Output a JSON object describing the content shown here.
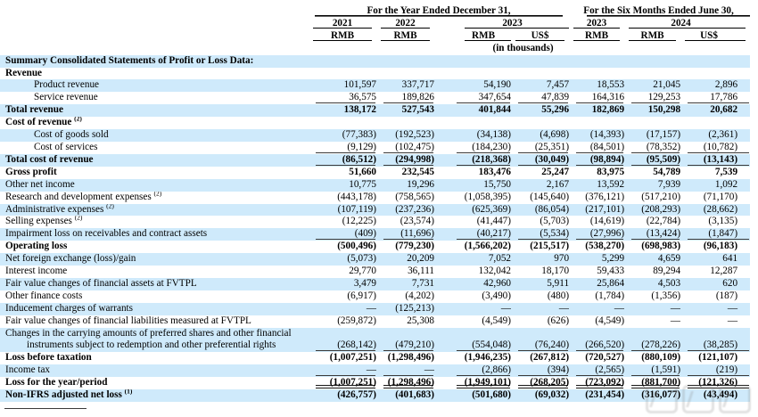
{
  "colors": {
    "stripe": "#cfeafb",
    "text": "#000000"
  },
  "header": {
    "group_year": "For the Year Ended December 31,",
    "group_six_months": "For the Six Months Ended June 30,",
    "years": [
      "2021",
      "2022",
      "2023",
      "2023",
      "2024"
    ],
    "currencies": [
      "RMB",
      "RMB",
      "RMB",
      "US$",
      "RMB",
      "RMB",
      "US$"
    ],
    "units_note": "(in thousands)"
  },
  "rows": [
    {
      "label": "Summary Consolidated Statements of Profit or Loss Data:",
      "bold": true,
      "values": [
        "",
        "",
        "",
        "",
        "",
        "",
        ""
      ]
    },
    {
      "label": "Revenue",
      "bold": true,
      "values": [
        "",
        "",
        "",
        "",
        "",
        "",
        ""
      ]
    },
    {
      "label": "Product revenue",
      "indent": true,
      "values": [
        "101,597",
        "337,717",
        "54,190",
        "7,457",
        "18,553",
        "21,045",
        "2,896"
      ]
    },
    {
      "label": "Service revenue",
      "indent": true,
      "underline": "u",
      "values": [
        "36,575",
        "189,826",
        "347,654",
        "47,839",
        "164,316",
        "129,253",
        "17,786"
      ]
    },
    {
      "label": "Total revenue",
      "bold": true,
      "values": [
        "138,172",
        "527,543",
        "401,844",
        "55,296",
        "182,869",
        "150,298",
        "20,682"
      ]
    },
    {
      "label": "Cost of revenue",
      "sup": "(2)",
      "bold": true,
      "values": [
        "",
        "",
        "",
        "",
        "",
        "",
        ""
      ]
    },
    {
      "label": "Cost of goods sold",
      "indent": true,
      "values": [
        "(77,383)",
        "(192,523)",
        "(34,138)",
        "(4,698)",
        "(14,393)",
        "(17,157)",
        "(2,361)"
      ]
    },
    {
      "label": "Cost of services",
      "indent": true,
      "underline": "u",
      "values": [
        "(9,129)",
        "(102,475)",
        "(184,230)",
        "(25,351)",
        "(84,501)",
        "(78,352)",
        "(10,782)"
      ]
    },
    {
      "label": "Total cost of revenue",
      "bold": true,
      "underline": "u",
      "values": [
        "(86,512)",
        "(294,998)",
        "(218,368)",
        "(30,049)",
        "(98,894)",
        "(95,509)",
        "(13,143)"
      ]
    },
    {
      "label": "Gross profit",
      "bold": true,
      "values": [
        "51,660",
        "232,545",
        "183,476",
        "25,247",
        "83,975",
        "54,789",
        "7,539"
      ]
    },
    {
      "label": "Other net income",
      "values": [
        "10,775",
        "19,296",
        "15,750",
        "2,167",
        "13,592",
        "7,939",
        "1,092"
      ]
    },
    {
      "label": "Research and development expenses",
      "sup": "(2)",
      "values": [
        "(443,178)",
        "(758,565)",
        "(1,058,395)",
        "(145,640)",
        "(376,121)",
        "(517,210)",
        "(71,170)"
      ]
    },
    {
      "label": "Administrative expenses",
      "sup": "(2)",
      "values": [
        "(107,119)",
        "(237,236)",
        "(625,369)",
        "(86,054)",
        "(217,101)",
        "(208,293)",
        "(28,662)"
      ]
    },
    {
      "label": "Selling expenses",
      "sup": "(2)",
      "values": [
        "(12,225)",
        "(23,574)",
        "(41,447)",
        "(5,703)",
        "(14,619)",
        "(22,784)",
        "(3,135)"
      ]
    },
    {
      "label": "Impairment loss on receivables and contract assets",
      "underline": "u",
      "values": [
        "(409)",
        "(11,696)",
        "(40,217)",
        "(5,534)",
        "(27,996)",
        "(13,424)",
        "(1,847)"
      ]
    },
    {
      "label": "Operating loss",
      "bold": true,
      "values": [
        "(500,496)",
        "(779,230)",
        "(1,566,202)",
        "(215,517)",
        "(538,270)",
        "(698,983)",
        "(96,183)"
      ]
    },
    {
      "label": "Net foreign exchange (loss)/gain",
      "values": [
        "(5,073)",
        "20,209",
        "7,052",
        "970",
        "5,299",
        "4,659",
        "641"
      ]
    },
    {
      "label": "Interest income",
      "values": [
        "29,770",
        "36,111",
        "132,042",
        "18,170",
        "59,433",
        "89,294",
        "12,287"
      ]
    },
    {
      "label": "Fair value changes of financial assets at FVTPL",
      "values": [
        "3,479",
        "7,731",
        "42,960",
        "5,911",
        "25,864",
        "4,503",
        "620"
      ]
    },
    {
      "label": "Other finance costs",
      "values": [
        "(6,917)",
        "(4,202)",
        "(3,490)",
        "(480)",
        "(1,784)",
        "(1,356)",
        "(187)"
      ]
    },
    {
      "label": "Inducement charges of warrants",
      "values": [
        "—",
        "(125,213)",
        "—",
        "—",
        "—",
        "—",
        "—"
      ]
    },
    {
      "label": "Fair value changes of financial liabilities measured at FVTPL",
      "values": [
        "(259,872)",
        "25,308",
        "(4,549)",
        "(626)",
        "(4,549)",
        "—",
        "—"
      ]
    },
    {
      "label": "Changes in the carrying amounts of preferred shares and other financial",
      "label2": "instruments subject to redemption and other preferential rights",
      "underline": "u",
      "values": [
        "(268,142)",
        "(479,210)",
        "(554,048)",
        "(76,240)",
        "(266,520)",
        "(278,226)",
        "(38,285)"
      ]
    },
    {
      "label": "Loss before taxation",
      "bold": true,
      "values": [
        "(1,007,251)",
        "(1,298,496)",
        "(1,946,235)",
        "(267,812)",
        "(720,527)",
        "(880,109)",
        "(121,107)"
      ]
    },
    {
      "label": "Income tax",
      "underline": "u",
      "values": [
        "—",
        "—",
        "(2,866)",
        "(394)",
        "(2,565)",
        "(1,591)",
        "(219)"
      ]
    },
    {
      "label": "Loss for the year/period",
      "bold": true,
      "underline": "uu",
      "values": [
        "(1,007,251)",
        "(1,298,496)",
        "(1,949,101)",
        "(268,205)",
        "(723,092)",
        "(881,700)",
        "(121,326)"
      ]
    },
    {
      "label": "Non-IFRS adjusted net loss",
      "sup": "(1)",
      "bold": true,
      "values": [
        "(426,757)",
        "(401,683)",
        "(501,680)",
        "(69,032)",
        "(231,454)",
        "(316,077)",
        "(43,494)"
      ]
    }
  ]
}
